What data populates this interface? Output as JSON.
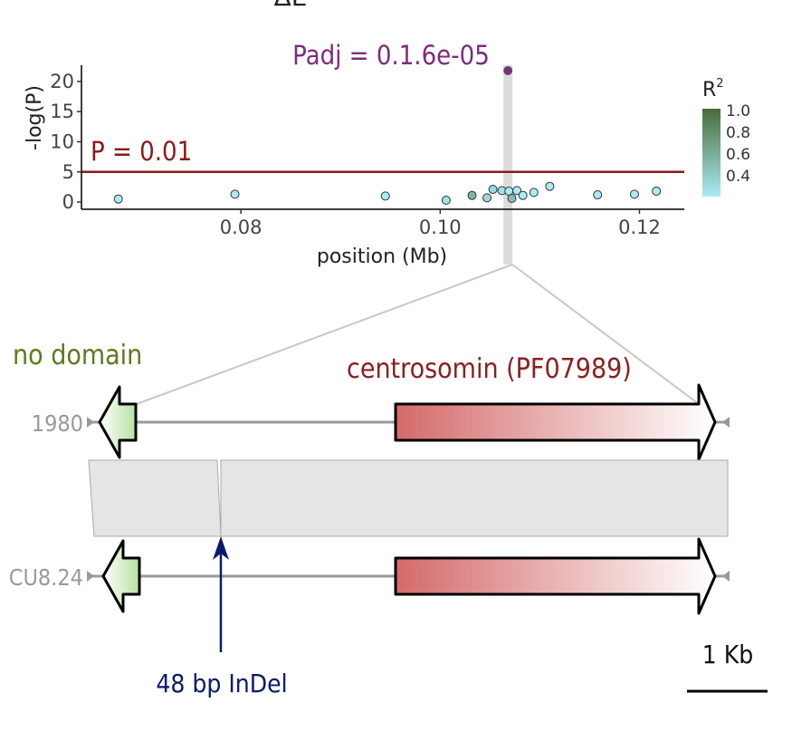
{
  "panel_label": "ΔE",
  "chart_data": {
    "type": "scatter",
    "xlabel": "position (Mb)",
    "ylabel": "-log(P)",
    "xlim": [
      0.064,
      0.1245
    ],
    "ylim": [
      -1.2,
      23
    ],
    "x_ticks": [
      0.08,
      0.1,
      0.12
    ],
    "x_tick_labels": [
      "0.08",
      "0.10",
      "0.12"
    ],
    "y_ticks": [
      0,
      5,
      10,
      15,
      20
    ],
    "y_tick_labels": [
      "0",
      "5",
      "10",
      "15",
      "20"
    ],
    "points": [
      {
        "x": 0.0677,
        "y": 0.5,
        "r2": 0.3
      },
      {
        "x": 0.0794,
        "y": 1.3,
        "r2": 0.3
      },
      {
        "x": 0.0945,
        "y": 1.0,
        "r2": 0.3
      },
      {
        "x": 0.1006,
        "y": 0.3,
        "r2": 0.35
      },
      {
        "x": 0.1032,
        "y": 1.1,
        "r2": 0.6
      },
      {
        "x": 0.1047,
        "y": 0.7,
        "r2": 0.4
      },
      {
        "x": 0.1053,
        "y": 2.1,
        "r2": 0.4
      },
      {
        "x": 0.1062,
        "y": 1.9,
        "r2": 0.35
      },
      {
        "x": 0.1069,
        "y": 1.8,
        "r2": 0.3
      },
      {
        "x": 0.1072,
        "y": 0.6,
        "r2": 0.55
      },
      {
        "x": 0.1077,
        "y": 1.9,
        "r2": 0.3
      },
      {
        "x": 0.1083,
        "y": 1.1,
        "r2": 0.3
      },
      {
        "x": 0.1094,
        "y": 1.6,
        "r2": 0.3
      },
      {
        "x": 0.111,
        "y": 2.6,
        "r2": 0.3
      },
      {
        "x": 0.1158,
        "y": 1.2,
        "r2": 0.3
      },
      {
        "x": 0.1195,
        "y": 1.3,
        "r2": 0.3
      },
      {
        "x": 0.1217,
        "y": 1.8,
        "r2": 0.3
      }
    ],
    "top_hit": {
      "x": 0.1068,
      "y": 21.8,
      "label": "Padj = 0.1.6e-05",
      "color": "#7b2d7b"
    },
    "threshold": {
      "y": 5,
      "label": "P = 0.01",
      "color": "#8b1a1a"
    },
    "highlight_x": 0.1068,
    "legend": {
      "title": "R",
      "title_sup": "2",
      "labels": [
        "1.0",
        "0.8",
        "0.6",
        "0.4"
      ],
      "color_high": "#4a6b3a",
      "color_low": "#a8ecf4"
    },
    "grid": false
  },
  "gene_diagram": {
    "domain_left_label": "no domain",
    "domain_left_color": "#5c7a1e",
    "domain_right_label": "centrosomin (PF07989)",
    "domain_right_color": "#8b2020",
    "strain_top": "1980",
    "strain_bottom": "CU8.24",
    "indel_label": "48 bp InDel",
    "indel_color": "#0a1a6b",
    "scale_label": "1 Kb"
  }
}
